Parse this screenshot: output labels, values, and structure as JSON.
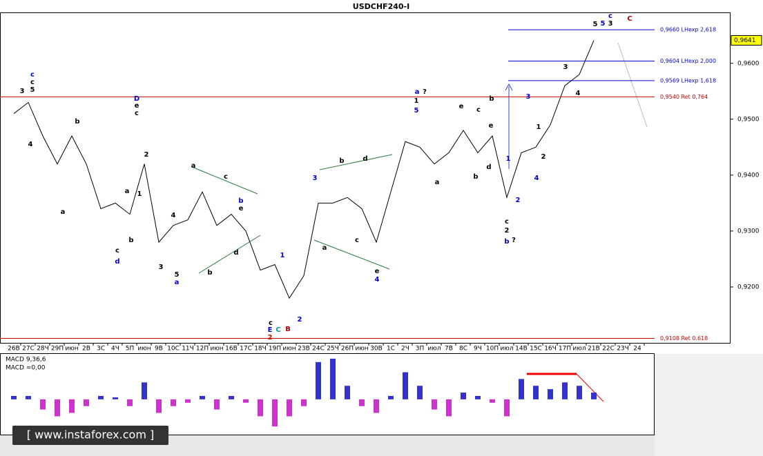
{
  "chart_data": {
    "type": "line",
    "title": "USDCHF240-I",
    "categories": [
      "26В",
      "27С",
      "28Ч",
      "29П",
      "июн",
      "2В",
      "3С",
      "4Ч",
      "5П",
      "июн",
      "9В",
      "10С",
      "11Ч",
      "12П",
      "июн",
      "16В",
      "17С",
      "18Ч",
      "19П",
      "июн",
      "23В",
      "24С",
      "25Ч",
      "26П",
      "июн",
      "30В",
      "1С",
      "2Ч",
      "3П",
      "июл",
      "7В",
      "8С",
      "9Ч",
      "10П",
      "июл",
      "14В",
      "15С",
      "16Ч",
      "17П",
      "июл",
      "21В",
      "22С",
      "23Ч",
      "24"
    ],
    "series": [
      {
        "color": "#000000",
        "values": [
          0.951,
          0.953,
          0.947,
          0.942,
          0.947,
          0.942,
          0.934,
          0.935,
          0.933,
          0.942,
          0.928,
          0.931,
          0.932,
          0.937,
          0.931,
          0.933,
          0.93,
          0.923,
          0.924,
          0.918,
          0.922,
          0.935,
          0.935,
          0.936,
          0.934,
          0.928,
          0.937,
          0.946,
          0.945,
          0.942,
          0.944,
          0.948,
          0.944,
          0.947,
          0.936,
          0.944,
          0.945,
          0.949,
          0.956,
          0.958,
          0.9641,
          null,
          null,
          null
        ]
      }
    ],
    "ylim": [
      0.91,
      0.9691
    ],
    "yticks": [
      {
        "value": 0.92,
        "label": "0,9200"
      },
      {
        "value": 0.93,
        "label": "0,9300"
      },
      {
        "value": 0.94,
        "label": "0,9400"
      },
      {
        "value": 0.95,
        "label": "0,9500"
      },
      {
        "value": 0.96,
        "label": "0,9600"
      }
    ],
    "current_price": {
      "value": 0.9641,
      "label": "0,9641",
      "color": "#ffff00"
    },
    "levels": [
      {
        "value": 0.966,
        "label": "0,9660 LHexp 2,618",
        "color": "#0000cc"
      },
      {
        "value": 0.9604,
        "label": "0,9604 LHexp 2,000",
        "color": "#0000cc"
      },
      {
        "value": 0.9569,
        "label": "0,9569 LHexp 1,618",
        "color": "#0000cc"
      },
      {
        "value": 0.954,
        "label": "0,9540 Ret 0,764",
        "color": "#cc0000"
      },
      {
        "value": 0.9108,
        "label": "0,9108 Ret 0.618",
        "color": "#cc0000"
      }
    ],
    "annotations": [
      "c",
      "c",
      "5",
      "3",
      "4",
      "b",
      "a",
      "D",
      "e",
      "c",
      "2",
      "1",
      "a",
      "b",
      "c",
      "d",
      "a",
      "c",
      "b",
      "e",
      "4",
      "d",
      "b",
      "3",
      "5",
      "a",
      "1",
      "2",
      "c",
      "E",
      "C",
      "B",
      "2",
      "3",
      "b",
      "d",
      "a",
      "c",
      "e",
      "4",
      "a",
      "?",
      "1",
      "5",
      "a",
      "e",
      "c",
      "b",
      "e",
      "d",
      "b",
      "c",
      "2",
      "b",
      "?",
      "1",
      "2",
      "3",
      "4",
      "1",
      "2",
      "3",
      "4",
      "5",
      "5",
      "3",
      "c",
      "C"
    ],
    "macd": {
      "title": "MACD 9,36,6",
      "value_text": "MACD =0,00",
      "positive_color": "#3333cc",
      "negative_color": "#cc33cc",
      "ylim": [
        -50,
        65
      ],
      "values": [
        5,
        5,
        -15,
        -25,
        -20,
        -10,
        5,
        3,
        -10,
        25,
        -20,
        -10,
        -5,
        5,
        -15,
        5,
        -5,
        -25,
        -40,
        -25,
        -10,
        55,
        60,
        20,
        -10,
        -20,
        5,
        40,
        20,
        -15,
        -25,
        10,
        5,
        -5,
        -25,
        30,
        20,
        15,
        25,
        20,
        10,
        null,
        null,
        null
      ]
    },
    "watermark": "[ www.instaforex.com ]"
  }
}
